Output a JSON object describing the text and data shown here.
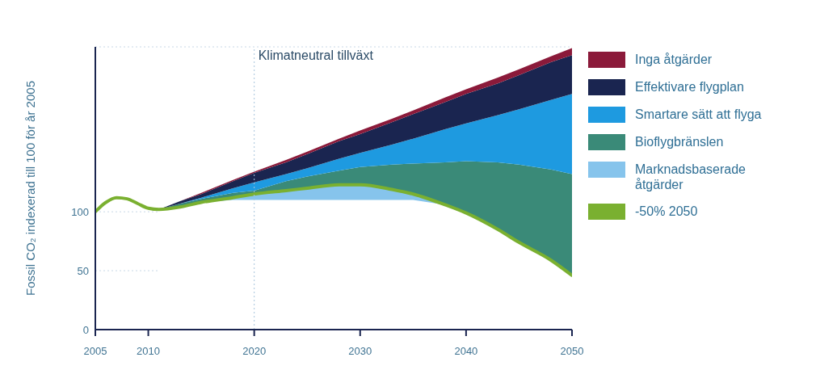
{
  "chart_data": {
    "type": "area",
    "stacked": true,
    "ylabel": "Fossil CO₂ indexerad till 100 för år 2005",
    "x": [
      2005,
      2006,
      2007,
      2008,
      2009,
      2010,
      2011,
      2013,
      2015,
      2018,
      2020,
      2023,
      2025,
      2028,
      2030,
      2033,
      2035,
      2038,
      2040,
      2043,
      2045,
      2048,
      2050
    ],
    "xlim": [
      2005,
      2050
    ],
    "xticks": [
      2005,
      2010,
      2020,
      2030,
      2040,
      2050
    ],
    "ylim": [
      0,
      240
    ],
    "yticks": [
      0,
      50,
      100
    ],
    "grid": "y",
    "legend": "right",
    "marker": "none",
    "line_style": "solid",
    "ref_lines": [
      {
        "axis": "x",
        "value": 2020,
        "label": "Klimatneutral tillväxt",
        "color": "#a8c4dc",
        "line_style": "dotted"
      }
    ],
    "series": [
      {
        "color": "#ffffff",
        "values": [
          null,
          null,
          null,
          null,
          null,
          null,
          102,
          104,
          108,
          110,
          110,
          110,
          110,
          110,
          110,
          110,
          110,
          106,
          99,
          85,
          74,
          59,
          46
        ]
      },
      {
        "name": "Marknadsbaserade åtgärder",
        "color": "#86c4ec",
        "values": [
          null,
          null,
          null,
          null,
          null,
          null,
          0,
          0,
          0,
          2,
          5,
          8,
          10,
          13,
          13,
          9,
          5,
          0,
          0,
          0,
          0,
          0,
          0
        ]
      },
      {
        "name": "Bioflygbränslen",
        "color": "#3a8a78",
        "values": [
          null,
          null,
          null,
          null,
          null,
          null,
          0,
          3,
          3,
          4,
          3,
          8,
          10,
          12,
          15,
          21,
          26,
          36,
          44,
          57,
          66,
          77,
          86
        ]
      },
      {
        "name": "Smartare sätt att flyga",
        "color": "#1e9ae0",
        "values": [
          null,
          null,
          null,
          null,
          null,
          null,
          0,
          0,
          1,
          4,
          7,
          6,
          7,
          10,
          12,
          17,
          21,
          28,
          32,
          40,
          47,
          59,
          68
        ]
      },
      {
        "name": "Effektivare flygplan",
        "color": "#1a2550",
        "values": [
          null,
          null,
          null,
          null,
          null,
          null,
          0,
          2,
          3,
          6,
          8,
          10,
          12,
          15,
          16,
          19,
          21,
          23,
          25,
          27,
          29,
          32,
          33
        ]
      },
      {
        "name": "Inga åtgärder",
        "color": "#8b1a3a",
        "values": [
          null,
          null,
          null,
          null,
          null,
          null,
          0,
          0,
          1,
          1,
          1,
          2,
          2,
          2,
          3,
          3,
          3,
          4,
          4,
          5,
          5,
          5,
          6
        ]
      },
      {
        "name": "-50% 2050",
        "type": "line",
        "color": "#7ab030",
        "values": [
          100,
          108,
          112,
          111,
          107,
          103,
          102,
          104,
          108,
          112,
          115,
          118,
          120,
          123,
          123,
          119,
          115,
          106,
          99,
          85,
          74,
          59,
          46
        ]
      }
    ]
  }
}
